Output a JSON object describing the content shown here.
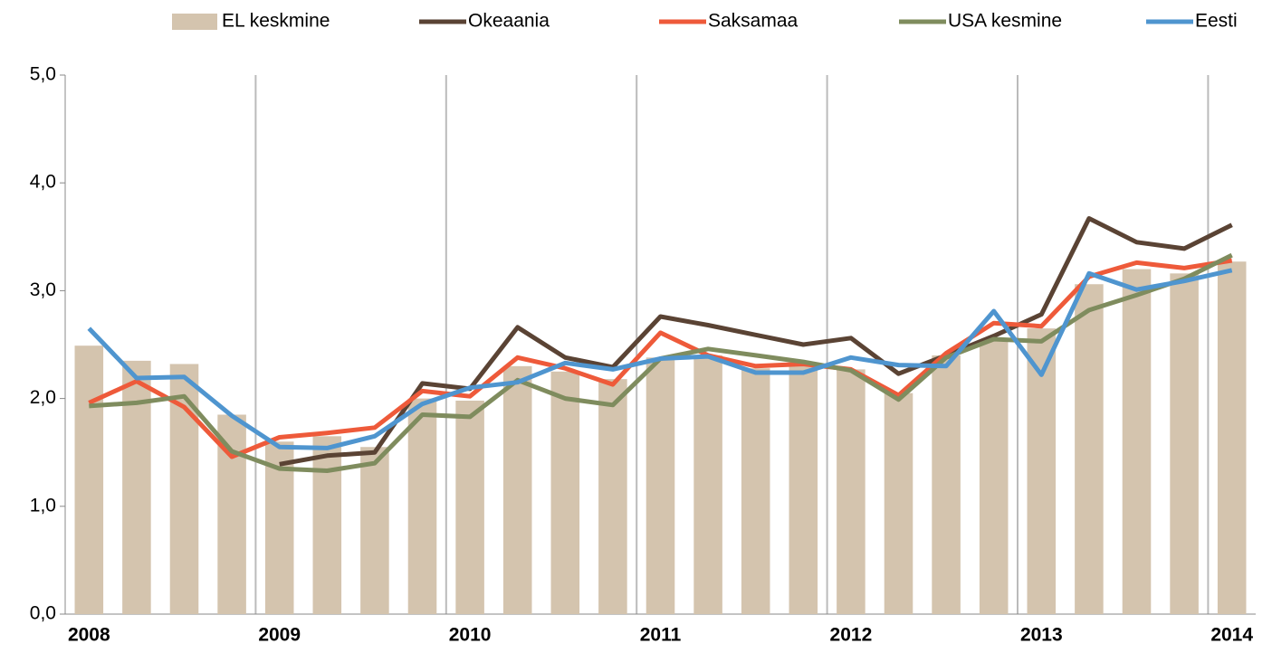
{
  "chart_data": {
    "type": "combo",
    "categories": [
      "2008",
      null,
      null,
      null,
      "2009",
      null,
      null,
      null,
      "2010",
      null,
      null,
      null,
      "2011",
      null,
      null,
      null,
      "2012",
      null,
      null,
      null,
      "2013",
      null,
      null,
      null,
      "2014"
    ],
    "series": [
      {
        "name": "EL keskmine",
        "kind": "bar",
        "color": "#d4c4ae",
        "values": [
          2.49,
          2.35,
          2.32,
          1.85,
          1.6,
          1.65,
          1.55,
          2.0,
          1.98,
          2.3,
          2.25,
          2.18,
          2.38,
          2.4,
          2.28,
          2.3,
          2.27,
          2.05,
          2.4,
          2.55,
          2.65,
          3.06,
          3.2,
          3.16,
          3.27
        ]
      },
      {
        "name": "Okeaania",
        "kind": "line",
        "color": "#5a4334",
        "values": [
          null,
          null,
          null,
          null,
          1.39,
          1.47,
          1.5,
          2.14,
          2.09,
          2.66,
          2.38,
          2.29,
          2.76,
          2.68,
          2.59,
          2.5,
          2.56,
          2.23,
          2.4,
          2.58,
          2.78,
          3.67,
          3.45,
          3.39,
          3.61
        ]
      },
      {
        "name": "Saksamaa",
        "kind": "line",
        "color": "#ee5a3a",
        "values": [
          1.96,
          2.16,
          1.92,
          1.46,
          1.64,
          1.68,
          1.73,
          2.07,
          2.02,
          2.38,
          2.28,
          2.13,
          2.61,
          2.4,
          2.3,
          2.32,
          2.27,
          2.03,
          2.42,
          2.7,
          2.67,
          3.13,
          3.26,
          3.21,
          3.28
        ]
      },
      {
        "name": "USA kesmine",
        "kind": "line",
        "color": "#7f8c5e",
        "values": [
          1.93,
          1.96,
          2.02,
          1.51,
          1.35,
          1.33,
          1.4,
          1.85,
          1.83,
          2.17,
          2.0,
          1.94,
          2.37,
          2.46,
          2.4,
          2.34,
          2.26,
          1.99,
          2.38,
          2.55,
          2.53,
          2.82,
          2.96,
          3.11,
          3.33
        ]
      },
      {
        "name": "Eesti",
        "kind": "line",
        "color": "#4f95cf",
        "values": [
          2.65,
          2.19,
          2.2,
          1.84,
          1.55,
          1.54,
          1.65,
          1.95,
          2.1,
          2.15,
          2.33,
          2.27,
          2.37,
          2.39,
          2.24,
          2.24,
          2.38,
          2.31,
          2.3,
          2.81,
          2.22,
          3.16,
          3.01,
          3.09,
          3.19
        ]
      }
    ],
    "ylim": [
      0,
      5
    ],
    "yticks": [
      {
        "value": 0,
        "label": "0,0"
      },
      {
        "value": 1,
        "label": "1,0"
      },
      {
        "value": 2,
        "label": "2,0"
      },
      {
        "value": 3,
        "label": "3,0"
      },
      {
        "value": 4,
        "label": "4,0"
      },
      {
        "value": 5,
        "label": "5,0"
      }
    ],
    "legend": "top",
    "grid": true
  }
}
